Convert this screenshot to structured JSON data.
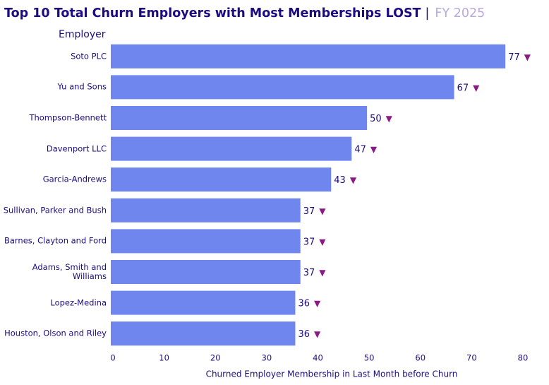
{
  "chart_data": {
    "type": "bar",
    "orientation": "horizontal",
    "title": "Top 10 Total Churn Employers with Most Memberships LOST",
    "title_separator": "|",
    "subtitle": "FY 2025",
    "y_axis_label": "Employer",
    "x_axis_label": "Churned Employer Membership in Last Month before Churn",
    "categories": [
      "Soto PLC",
      "Yu and Sons",
      "Thompson-Bennett",
      "Davenport LLC",
      "Garcia-Andrews",
      "Sullivan, Parker and Bush",
      "Barnes, Clayton and Ford",
      "Adams, Smith and Williams",
      "Lopez-Medina",
      "Houston, Olson and Riley"
    ],
    "values": [
      77,
      67,
      50,
      47,
      43,
      37,
      37,
      37,
      36,
      36
    ],
    "value_marker": "▼",
    "color": "#6f86ef",
    "marker_color": "#8b1a85",
    "xlim": [
      0,
      80
    ],
    "xticks": [
      0,
      10,
      20,
      30,
      40,
      50,
      60,
      70,
      80
    ],
    "grid": false
  }
}
